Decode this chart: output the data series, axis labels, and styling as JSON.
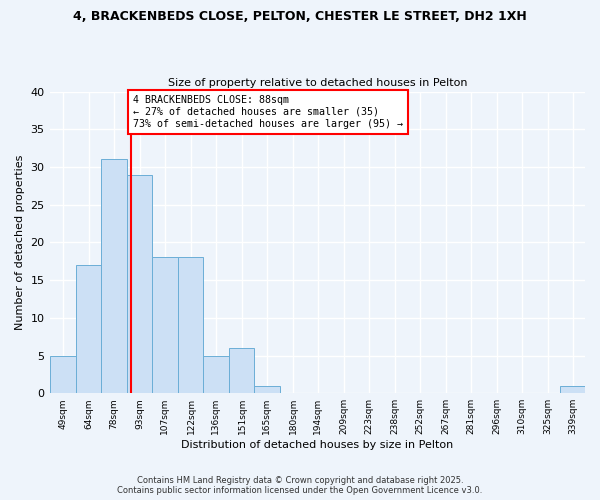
{
  "title_line1": "4, BRACKENBEDS CLOSE, PELTON, CHESTER LE STREET, DH2 1XH",
  "title_line2": "Size of property relative to detached houses in Pelton",
  "xlabel": "Distribution of detached houses by size in Pelton",
  "ylabel": "Number of detached properties",
  "footer_line1": "Contains HM Land Registry data © Crown copyright and database right 2025.",
  "footer_line2": "Contains public sector information licensed under the Open Government Licence v3.0.",
  "bin_labels": [
    "49sqm",
    "64sqm",
    "78sqm",
    "93sqm",
    "107sqm",
    "122sqm",
    "136sqm",
    "151sqm",
    "165sqm",
    "180sqm",
    "194sqm",
    "209sqm",
    "223sqm",
    "238sqm",
    "252sqm",
    "267sqm",
    "281sqm",
    "296sqm",
    "310sqm",
    "325sqm",
    "339sqm"
  ],
  "label_values": [
    49,
    64,
    78,
    93,
    107,
    122,
    136,
    151,
    165,
    180,
    194,
    209,
    223,
    238,
    252,
    267,
    281,
    296,
    310,
    325,
    339
  ],
  "bar_heights": [
    5,
    17,
    31,
    29,
    18,
    18,
    5,
    6,
    1,
    0,
    0,
    0,
    0,
    0,
    0,
    0,
    0,
    0,
    0,
    0,
    1
  ],
  "bar_color": "#cce0f5",
  "bar_edgecolor": "#6baed6",
  "reference_line_x": 88,
  "reference_line_label": "4 BRACKENBEDS CLOSE: 88sqm",
  "annotation_line1": "← 27% of detached houses are smaller (35)",
  "annotation_line2": "73% of semi-detached houses are larger (95) →",
  "annotation_box_facecolor": "white",
  "annotation_box_edgecolor": "red",
  "ref_line_color": "red",
  "ylim": [
    0,
    40
  ],
  "yticks": [
    0,
    5,
    10,
    15,
    20,
    25,
    30,
    35,
    40
  ],
  "background_color": "#eef4fb"
}
